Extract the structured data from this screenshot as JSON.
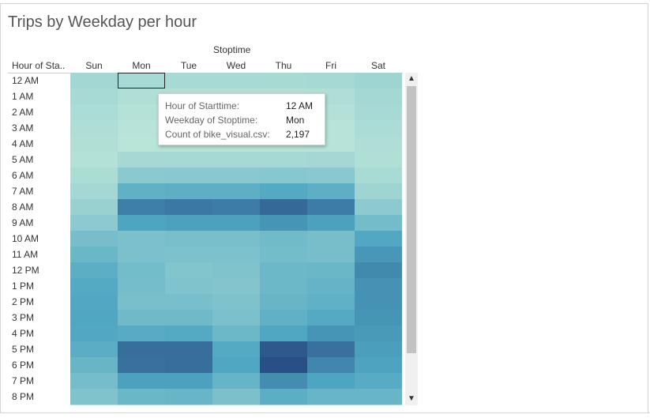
{
  "title": "Trips by Weekday per hour",
  "chart_data": {
    "type": "heatmap",
    "title": "Trips by Weekday per hour",
    "column_title": "Stoptime",
    "row_header": "Hour of Sta..",
    "columns": [
      "Sun",
      "Mon",
      "Tue",
      "Wed",
      "Thu",
      "Fri",
      "Sat"
    ],
    "rows": [
      "12 AM",
      "1 AM",
      "2 AM",
      "3 AM",
      "4 AM",
      "5 AM",
      "6 AM",
      "7 AM",
      "8 AM",
      "9 AM",
      "10 AM",
      "11 AM",
      "12 PM",
      "1 PM",
      "2 PM",
      "3 PM",
      "4 PM",
      "5 PM",
      "6 PM",
      "7 PM",
      "8 PM"
    ],
    "values": [
      [
        2700,
        2197,
        2100,
        2100,
        2150,
        2300,
        3200
      ],
      [
        2200,
        1300,
        1200,
        1200,
        1250,
        1400,
        2600
      ],
      [
        1800,
        800,
        700,
        700,
        750,
        900,
        2200
      ],
      [
        1500,
        500,
        450,
        450,
        500,
        600,
        1800
      ],
      [
        1200,
        400,
        380,
        380,
        400,
        500,
        1500
      ],
      [
        1000,
        2300,
        2400,
        2400,
        2400,
        2500,
        1300
      ],
      [
        1700,
        5200,
        5400,
        5400,
        5600,
        5400,
        2000
      ],
      [
        2500,
        9500,
        9800,
        9800,
        10800,
        9800,
        3200
      ],
      [
        3700,
        15500,
        16200,
        15800,
        17800,
        15800,
        5000
      ],
      [
        5000,
        11500,
        12000,
        12000,
        13200,
        12000,
        7500
      ],
      [
        7200,
        6800,
        7000,
        7000,
        7800,
        7200,
        11000
      ],
      [
        8500,
        6800,
        6600,
        6700,
        7600,
        7200,
        13000
      ],
      [
        10000,
        7600,
        6000,
        6300,
        8200,
        8500,
        14500
      ],
      [
        10800,
        7400,
        6200,
        5900,
        8200,
        9200,
        13500
      ],
      [
        11000,
        7000,
        7000,
        6400,
        8700,
        9600,
        13500
      ],
      [
        11200,
        8000,
        8000,
        6800,
        9500,
        10800,
        13200
      ],
      [
        11000,
        10500,
        10800,
        8200,
        11200,
        13200,
        12800
      ],
      [
        10200,
        17200,
        17300,
        10800,
        19500,
        17000,
        12200
      ],
      [
        8800,
        17000,
        17200,
        11200,
        20500,
        14800,
        11800
      ],
      [
        7400,
        12000,
        12000,
        9000,
        14000,
        11500,
        10500
      ],
      [
        6200,
        8500,
        8800,
        6800,
        10000,
        8800,
        8800
      ]
    ],
    "highlight": {
      "row": 0,
      "column": 1
    }
  },
  "tooltip": {
    "hour_label": "Hour of Starttime:",
    "hour_value": "12 AM",
    "weekday_label": "Weekday of Stoptime:",
    "weekday_value": "Mon",
    "count_label": "Count of bike_visual.csv:",
    "count_value": "2,197"
  },
  "scrollbar": {
    "up_glyph": "▲",
    "down_glyph": "▼"
  },
  "colors": {
    "low": "#b9e4d8",
    "mid": "#4ea6c2",
    "high": "#2a4f86"
  }
}
